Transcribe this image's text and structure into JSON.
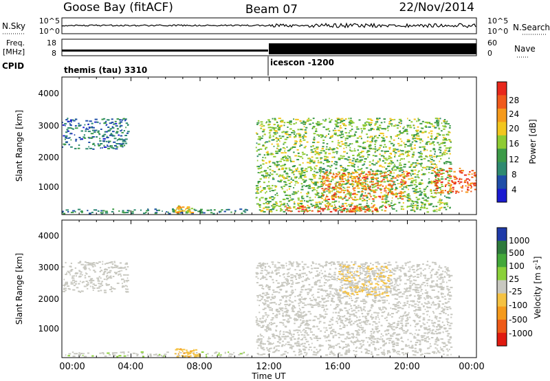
{
  "header": {
    "station": "Goose Bay (fitACF)",
    "beam": "Beam 07",
    "date": "22/Nov/2014"
  },
  "strips": {
    "nsky_label": "N.Sky",
    "nsky_ticks": [
      "10^5",
      "10^0"
    ],
    "nsearch_label": "N.Search",
    "nsearch_ticks": [
      "10^5",
      "10^0"
    ],
    "freq_label": "Freq.",
    "freq_unit": "[MHz]",
    "freq_ticks": [
      "18",
      "8"
    ],
    "nave_label": "Nave",
    "nave_ticks": [
      "60",
      "0"
    ],
    "cpid_label": "CPID",
    "cpid_programs": [
      "themis (tau) 3310",
      "icescon -1200"
    ]
  },
  "panels": {
    "ylabel": "Slant Range [km]",
    "xlabel": "Time UT",
    "yticks": [
      "4000",
      "3000",
      "2000",
      "1000"
    ],
    "xticks": [
      "00:00",
      "04:00",
      "08:00",
      "12:00",
      "16:00",
      "20:00",
      "00:00"
    ]
  },
  "power_colorbar": {
    "label": "Power [dB]",
    "ticks": [
      "28",
      "24",
      "20",
      "16",
      "12",
      "8",
      "4"
    ],
    "colors": [
      "#e8281c",
      "#f05a1c",
      "#f59a1c",
      "#f2c61e",
      "#8ecb32",
      "#3c9a48",
      "#2e8a70",
      "#1f4ea8",
      "#1a1ad0"
    ]
  },
  "velocity_colorbar": {
    "label": "Velocity [m s^-1]",
    "ticks": [
      "1000",
      "500",
      "100",
      "25",
      "-25",
      "-100",
      "-500",
      "-1000"
    ],
    "colors": [
      "#1f3aa8",
      "#2e7a3c",
      "#43a83a",
      "#8bd13a",
      "#c8c8c0",
      "#f5c242",
      "#f59a1c",
      "#ee5a18",
      "#e01a10"
    ]
  },
  "chart_data": [
    {
      "type": "heatmap",
      "title": "Power",
      "xlabel": "Time UT",
      "ylabel": "Slant Range [km]",
      "xlim": [
        "00:00",
        "24:00"
      ],
      "ylim": [
        200,
        4600
      ],
      "zlabel": "Power [dB]",
      "zlim": [
        0,
        30
      ],
      "regions": [
        {
          "t_start": 0.0,
          "t_end": 3.8,
          "range_start": 2300,
          "range_end": 3300,
          "power_db": 6
        },
        {
          "t_start": 0.0,
          "t_end": 10.8,
          "range_start": 250,
          "range_end": 400,
          "power_db": 8
        },
        {
          "t_start": 6.5,
          "t_end": 7.5,
          "range_start": 250,
          "range_end": 500,
          "power_db": 20
        },
        {
          "t_start": 11.2,
          "t_end": 22.5,
          "range_start": 300,
          "range_end": 3300,
          "power_db": 14
        },
        {
          "t_start": 12.8,
          "t_end": 19.0,
          "range_start": 300,
          "range_end": 500,
          "power_db": 28
        },
        {
          "t_start": 15.0,
          "t_end": 20.0,
          "range_start": 700,
          "range_end": 1600,
          "power_db": 24
        },
        {
          "t_start": 21.5,
          "t_end": 24.0,
          "range_start": 900,
          "range_end": 1700,
          "power_db": 26
        }
      ]
    },
    {
      "type": "heatmap",
      "title": "Velocity",
      "xlabel": "Time UT",
      "ylabel": "Slant Range [km]",
      "xlim": [
        "00:00",
        "24:00"
      ],
      "ylim": [
        200,
        4600
      ],
      "zlabel": "Velocity [m s^-1]",
      "zlim": [
        -1000,
        1000
      ],
      "regions": [
        {
          "t_start": 0.0,
          "t_end": 3.8,
          "range_start": 2300,
          "range_end": 3300,
          "velocity": 0
        },
        {
          "t_start": 0.0,
          "t_end": 10.8,
          "range_start": 250,
          "range_end": 400,
          "velocity": 50
        },
        {
          "t_start": 6.5,
          "t_end": 8.0,
          "range_start": 250,
          "range_end": 500,
          "velocity": -300
        },
        {
          "t_start": 11.2,
          "t_end": 22.5,
          "range_start": 300,
          "range_end": 3300,
          "velocity": 0
        },
        {
          "t_start": 16.0,
          "t_end": 19.0,
          "range_start": 2200,
          "range_end": 3200,
          "velocity": -150
        }
      ]
    }
  ]
}
